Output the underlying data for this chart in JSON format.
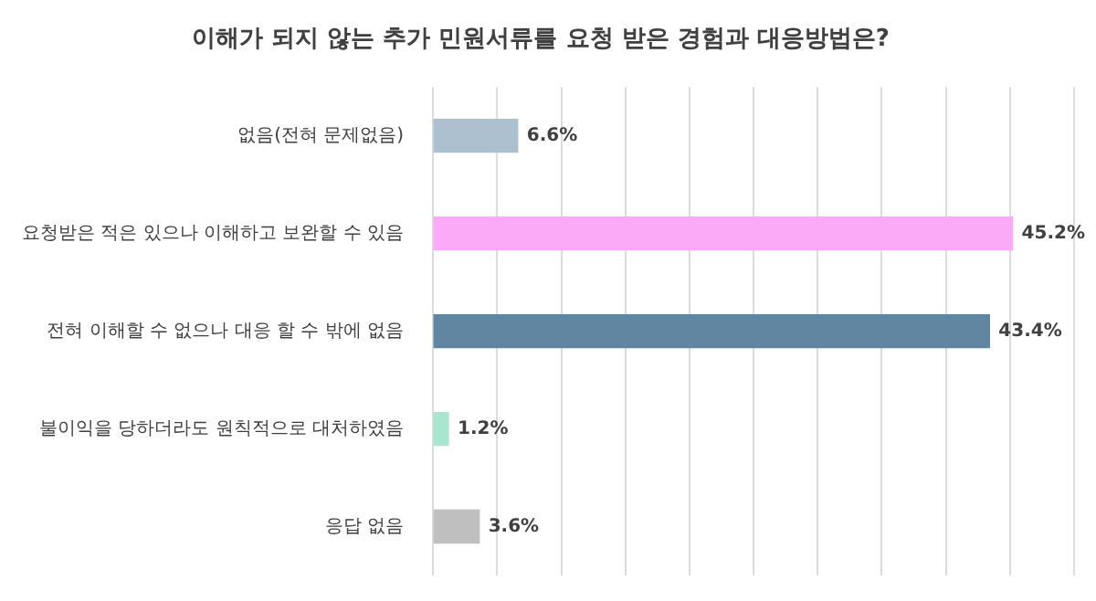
{
  "chart_data": {
    "type": "bar",
    "orientation": "horizontal",
    "title": "이해가 되지 않는 추가 민원서류를 요청 받은 경험과 대응방법은?",
    "categories": [
      "없음(전혀 문제없음)",
      "요청받은 적은 있으나 이해하고 보완할 수 있음",
      "전혀 이해할 수 없으나 대응 할 수 밖에 없음",
      "불이익을 당하더라도 원칙적으로 대처하였음",
      "응답 없음"
    ],
    "values": [
      6.6,
      45.2,
      43.4,
      1.2,
      3.6
    ],
    "colors": [
      "#adc0d0",
      "#fbaaf8",
      "#6086a2",
      "#a8e6cf",
      "#bfbfbf"
    ],
    "value_labels": [
      "6.6%",
      "45.2%",
      "43.4%",
      "1.2%",
      "3.6%"
    ],
    "xlim": [
      0,
      50
    ],
    "xticks": [
      {
        "value": 0,
        "label": null
      },
      {
        "value": 5,
        "label": null
      },
      {
        "value": 10,
        "label": null
      },
      {
        "value": 15,
        "label": null
      },
      {
        "value": 20,
        "label": null
      },
      {
        "value": 25,
        "label": null
      },
      {
        "value": 30,
        "label": null
      },
      {
        "value": 35,
        "label": null
      },
      {
        "value": 40,
        "label": null
      },
      {
        "value": 45,
        "label": null
      },
      {
        "value": 50,
        "label": null
      }
    ],
    "grid": "x",
    "tick_labels": "y",
    "legend": false
  }
}
